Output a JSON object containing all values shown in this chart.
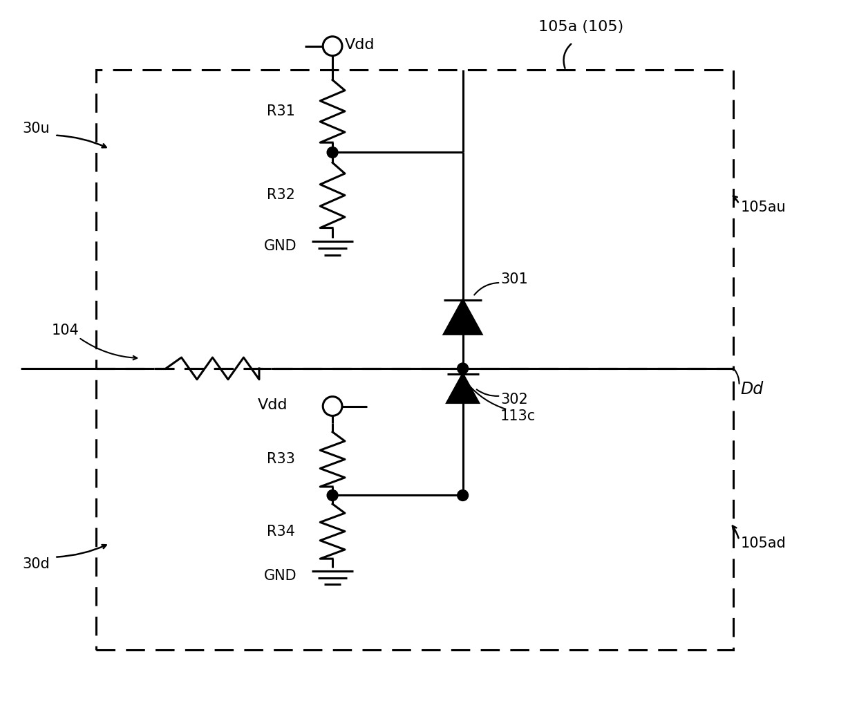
{
  "bg_color": "#ffffff",
  "line_color": "#000000",
  "lw": 2.2,
  "fig_width": 12.4,
  "fig_height": 10.53,
  "labels": {
    "title_label": "105a (105)",
    "label_105au": "105au",
    "label_105ad": "105ad",
    "label_30u": "30u",
    "label_30d": "30d",
    "label_104": "104",
    "label_R31": "R31",
    "label_R32": "R32",
    "label_R33": "R33",
    "label_R34": "R34",
    "label_GND_top": "GND",
    "label_GND_bot": "GND",
    "label_Vdd_top": "Vdd",
    "label_Vdd_bot": "Vdd",
    "label_301": "301",
    "label_302": "302",
    "label_113c": "113c",
    "label_Dd": "Dd"
  }
}
